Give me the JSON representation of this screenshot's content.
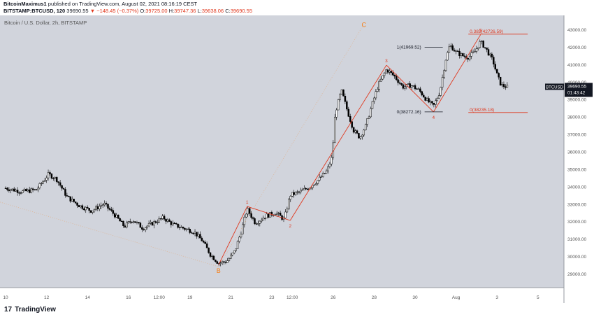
{
  "header": {
    "author": "BitcoinMaximus1",
    "published_text": "published on TradingView.com, August 02, 2021 08:16:19 CEST",
    "symbol": "BITSTAMP:BTCUSD, 120",
    "last": "39690.55",
    "change": "▼ −148.45 (−0.37%)",
    "open_label": "O:",
    "open": "39725.00",
    "high_label": "H:",
    "high": "39747.36",
    "low_label": "L:",
    "low": "39638.06",
    "close_label": "C:",
    "close": "39690.55"
  },
  "footer": {
    "brand": "TradingView",
    "logo": "17"
  },
  "colors": {
    "background": "#d1d4dc",
    "candle": "#000000",
    "wave": "#e0371d",
    "abc": "#f57f17",
    "fib": "#e0371d",
    "axis_text": "#555555"
  },
  "chart_data": {
    "type": "candlestick",
    "title": "Bitcoin / U.S. Dollar, 2h, BITSTAMP",
    "ylim": [
      28200,
      43800
    ],
    "y_ticks": [
      29000,
      30000,
      31000,
      32000,
      33000,
      34000,
      35000,
      36000,
      37000,
      38000,
      39000,
      40000,
      41000,
      42000,
      43000
    ],
    "y_tick_labels": [
      "29000.00",
      "30000.00",
      "31000.00",
      "32000.00",
      "33000.00",
      "34000.00",
      "35000.00",
      "36000.00",
      "37000.00",
      "38000.00",
      "39000.00",
      "40000.00",
      "41000.00",
      "42000.00",
      "43000.00"
    ],
    "x_ticks": [
      {
        "label": "10",
        "day": 0
      },
      {
        "label": "12",
        "day": 2
      },
      {
        "label": "14",
        "day": 4
      },
      {
        "label": "16",
        "day": 6
      },
      {
        "label": "12:00",
        "day": 7.5
      },
      {
        "label": "19",
        "day": 9
      },
      {
        "label": "21",
        "day": 11
      },
      {
        "label": "23",
        "day": 13
      },
      {
        "label": "12:00",
        "day": 14
      },
      {
        "label": "26",
        "day": 16
      },
      {
        "label": "28",
        "day": 18
      },
      {
        "label": "30",
        "day": 20
      },
      {
        "label": "Aug",
        "day": 22
      },
      {
        "label": "3",
        "day": 24
      },
      {
        "label": "5",
        "day": 26
      }
    ],
    "price_path": [
      [
        0,
        33900
      ],
      [
        0.8,
        33700
      ],
      [
        1.5,
        33800
      ],
      [
        2.1,
        34700
      ],
      [
        2.5,
        34400
      ],
      [
        3,
        33400
      ],
      [
        3.6,
        32900
      ],
      [
        4.2,
        32600
      ],
      [
        4.8,
        33000
      ],
      [
        5.3,
        32400
      ],
      [
        5.8,
        31700
      ],
      [
        6.2,
        32100
      ],
      [
        6.7,
        31600
      ],
      [
        7.2,
        31900
      ],
      [
        7.7,
        32200
      ],
      [
        8.2,
        31800
      ],
      [
        8.7,
        31600
      ],
      [
        9.2,
        31400
      ],
      [
        9.6,
        30900
      ],
      [
        10.0,
        30100
      ],
      [
        10.4,
        29600
      ],
      [
        10.8,
        29700
      ],
      [
        11.2,
        30300
      ],
      [
        11.5,
        31400
      ],
      [
        11.8,
        32700
      ],
      [
        12.2,
        31900
      ],
      [
        12.7,
        32300
      ],
      [
        13.2,
        32500
      ],
      [
        13.6,
        32100
      ],
      [
        13.9,
        33500
      ],
      [
        14.4,
        33700
      ],
      [
        14.9,
        34000
      ],
      [
        15.3,
        34400
      ],
      [
        15.7,
        34900
      ],
      [
        15.95,
        35700
      ],
      [
        16.1,
        38200
      ],
      [
        16.4,
        39500
      ],
      [
        16.7,
        38300
      ],
      [
        17.0,
        37200
      ],
      [
        17.3,
        36800
      ],
      [
        17.6,
        37500
      ],
      [
        17.9,
        38700
      ],
      [
        18.2,
        39800
      ],
      [
        18.6,
        40700
      ],
      [
        19.0,
        40300
      ],
      [
        19.4,
        39700
      ],
      [
        19.8,
        39800
      ],
      [
        20.2,
        39500
      ],
      [
        20.6,
        38900
      ],
      [
        20.9,
        38600
      ],
      [
        21.2,
        39400
      ],
      [
        21.5,
        41300
      ],
      [
        21.7,
        42100
      ],
      [
        22.0,
        41700
      ],
      [
        22.3,
        41500
      ],
      [
        22.6,
        41400
      ],
      [
        22.9,
        41700
      ],
      [
        23.2,
        42300
      ],
      [
        23.5,
        41800
      ],
      [
        23.8,
        41200
      ],
      [
        24.0,
        40400
      ],
      [
        24.2,
        39800
      ],
      [
        24.5,
        39700
      ]
    ],
    "ew_labels": [
      {
        "text": "1",
        "day": 11.8,
        "price": 32850
      },
      {
        "text": "2",
        "day": 13.9,
        "price": 32050
      },
      {
        "text": "3",
        "day": 18.6,
        "price": 40950
      },
      {
        "text": "4",
        "day": 20.9,
        "price": 38270
      },
      {
        "text": "5",
        "day": 23.2,
        "price": 42700
      }
    ],
    "abc_labels": [
      {
        "text": "B",
        "day": 10.4,
        "price": 29200
      },
      {
        "text": "C",
        "day": 17.5,
        "price": 43300
      }
    ],
    "fib_levels": [
      {
        "text": "0.382(42726.59)",
        "price": 42726.59,
        "start_day": 22.6,
        "end_day": 25.5
      },
      {
        "text": "0(38235.18)",
        "price": 38235.18,
        "start_day": 22.6,
        "end_day": 25.5
      }
    ],
    "annotations": [
      {
        "text": "1(41969.52)",
        "price": 41969.52
      },
      {
        "text": "0(38272.16)",
        "price": 38272.16
      }
    ],
    "price_tag": {
      "price": "39690.55",
      "countdown": "01:43:42",
      "symbol": "BTCUSD",
      "value": 39690.55
    }
  }
}
